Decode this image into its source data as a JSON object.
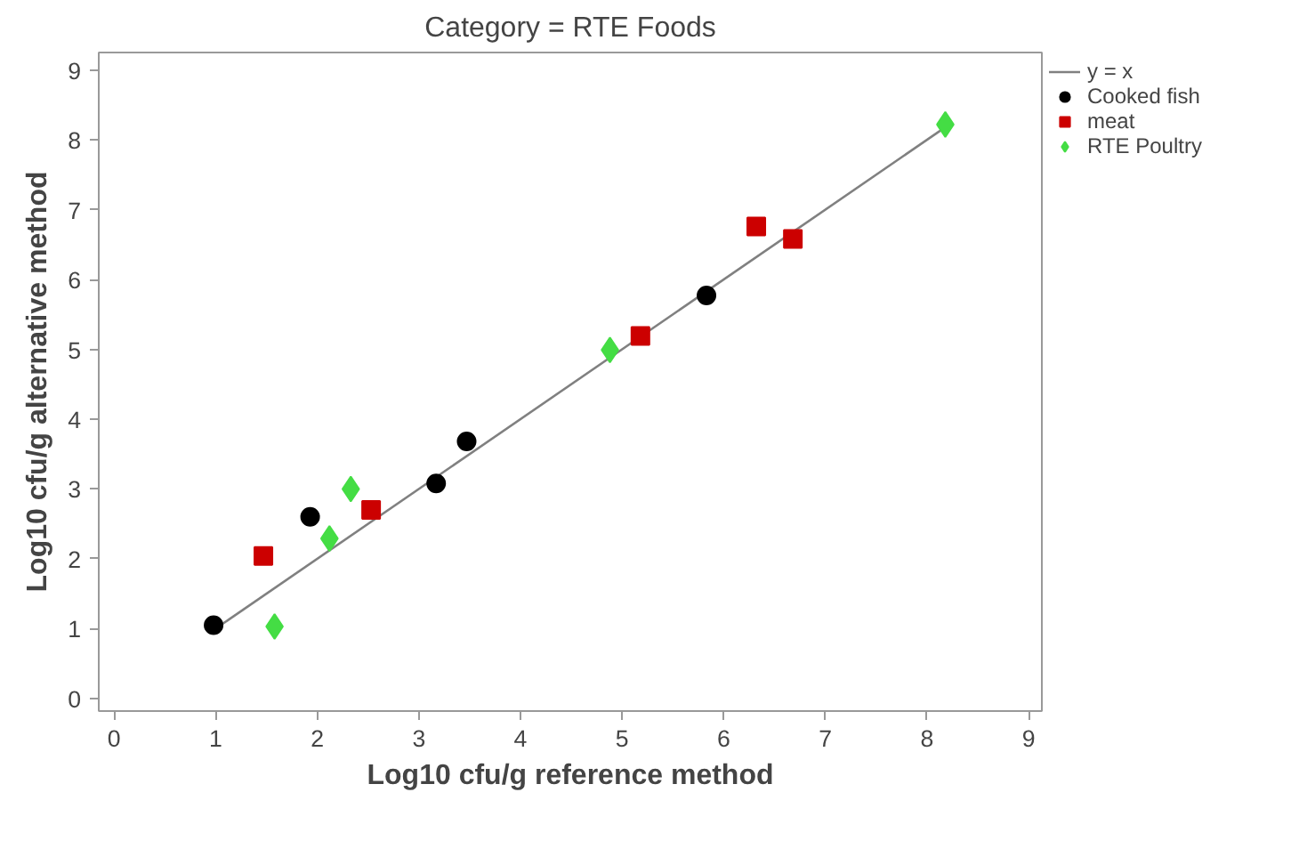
{
  "chart_data": {
    "type": "scatter",
    "title": "Category = RTE Foods",
    "xlabel": "Log10 cfu/g reference method",
    "ylabel": "Log10 cfu/g alternative method",
    "xlim": [
      -0.15,
      9.13
    ],
    "ylim": [
      -0.18,
      9.25
    ],
    "xticks": [
      0,
      1,
      2,
      3,
      4,
      5,
      6,
      7,
      8,
      9
    ],
    "yticks": [
      0,
      1,
      2,
      3,
      4,
      5,
      6,
      7,
      8,
      9
    ],
    "grid": false,
    "legend": "right",
    "series": [
      {
        "name": "y = x",
        "type": "line",
        "line_style": "solid",
        "marker": "none",
        "color": "#808080",
        "x": [
          1.0,
          8.2
        ],
        "values": [
          1.0,
          8.2
        ]
      },
      {
        "name": "Cooked fish",
        "marker": "circle",
        "color": "#000000",
        "x": [
          0.98,
          1.93,
          3.17,
          3.47,
          5.83
        ],
        "values": [
          1.05,
          2.6,
          3.08,
          3.68,
          5.77
        ]
      },
      {
        "name": "meat",
        "marker": "square",
        "color": "#cc0000",
        "x": [
          1.47,
          2.53,
          5.18,
          6.32,
          6.68
        ],
        "values": [
          2.04,
          2.7,
          5.19,
          6.76,
          6.58
        ]
      },
      {
        "name": "RTE Poultry",
        "marker": "diamond",
        "color": "#44dd44",
        "x": [
          1.58,
          2.12,
          2.33,
          4.88,
          8.18
        ],
        "values": [
          1.03,
          2.29,
          3.0,
          4.99,
          8.22
        ]
      }
    ]
  }
}
